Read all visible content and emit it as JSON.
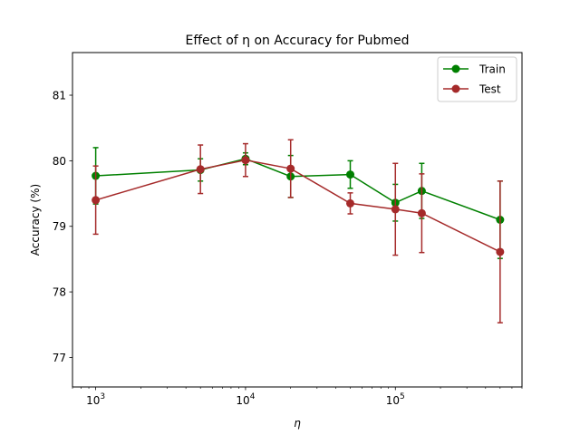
{
  "chart_data": {
    "type": "line",
    "title": "Effect of η on Accuracy for Pubmed",
    "xlabel": "η",
    "ylabel": "Accuracy (%)",
    "xscale": "log",
    "xlim": [
      700,
      700000
    ],
    "ylim": [
      76.55,
      81.65
    ],
    "x_ticks": [
      {
        "value": 1000,
        "base": "10",
        "exp": "3"
      },
      {
        "value": 10000,
        "base": "10",
        "exp": "4"
      },
      {
        "value": 100000,
        "base": "10",
        "exp": "5"
      }
    ],
    "y_ticks": [
      77,
      78,
      79,
      80,
      81
    ],
    "legend": {
      "position": "top-right"
    },
    "series": [
      {
        "name": "Train",
        "color": "#008000",
        "x": [
          1000,
          5000,
          10000,
          20000,
          50000,
          100000,
          150000,
          500000
        ],
        "y": [
          79.77,
          79.86,
          80.03,
          79.76,
          79.79,
          79.36,
          79.54,
          79.1
        ],
        "err": [
          0.43,
          0.17,
          0.09,
          0.32,
          0.21,
          0.28,
          0.42,
          0.59
        ]
      },
      {
        "name": "Test",
        "color": "#a52a2a",
        "x": [
          1000,
          5000,
          10000,
          20000,
          50000,
          100000,
          150000,
          500000
        ],
        "y": [
          79.4,
          79.87,
          80.01,
          79.88,
          79.35,
          79.26,
          79.2,
          78.61
        ],
        "err": [
          0.52,
          0.37,
          0.25,
          0.44,
          0.16,
          0.7,
          0.6,
          1.08
        ]
      }
    ]
  }
}
